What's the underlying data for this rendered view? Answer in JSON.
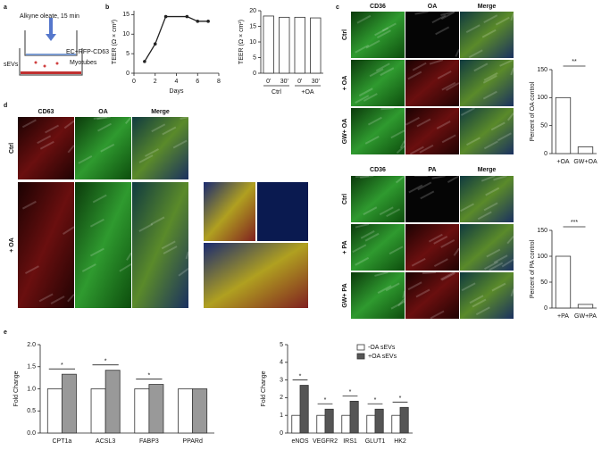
{
  "panel_labels": [
    "a",
    "b",
    "c",
    "d",
    "e"
  ],
  "schematic": {
    "top": "Alkyne oleate, 15 min",
    "ec": "EC+RFP-CD63",
    "myo": "Myotubes",
    "sevs": "sEVs"
  },
  "image_panels": [
    {
      "columns": [
        "CD36",
        "OA",
        "Merge"
      ],
      "rows": [
        "Ctrl",
        "+ OA",
        "GW+ OA"
      ]
    },
    {
      "columns": [
        "CD36",
        "PA",
        "Merge"
      ],
      "rows": [
        "Ctrl",
        "+ PA",
        "GW+ PA"
      ]
    },
    {
      "columns": [
        "CD63",
        "OA",
        "Merge"
      ],
      "rows": [
        "Ctrl",
        "+ OA"
      ]
    }
  ],
  "chart_data": [
    {
      "type": "line",
      "x_label": "Days",
      "y_label": "TEER (Ω × cm²)",
      "x": [
        1,
        2,
        3,
        5,
        6,
        7
      ],
      "values": [
        3,
        7.5,
        14.5,
        14.5,
        13.3,
        13.3
      ],
      "color": "#222222",
      "xlim": [
        0,
        8
      ],
      "xticks": [
        0,
        2,
        4,
        6,
        8
      ],
      "ylim": [
        0,
        16
      ],
      "yticks": [
        0,
        5,
        10,
        15
      ]
    },
    {
      "type": "bar",
      "y_label": "TEER (Ω × cm²)",
      "categories": [
        "0'",
        "30'",
        "0'",
        "30'"
      ],
      "groups": [
        "Ctrl",
        "+OA"
      ],
      "values": [
        18.3,
        17.9,
        17.9,
        17.7
      ],
      "color": "#ffffff",
      "ylim": [
        0,
        20
      ],
      "yticks": [
        0,
        5,
        10,
        15,
        20
      ]
    },
    {
      "type": "bar",
      "y_label": "Percent of OA control",
      "categories": [
        "+OA",
        "GW+OA"
      ],
      "values": [
        100,
        12
      ],
      "color": "#ffffff",
      "ylim": [
        0,
        150
      ],
      "yticks": [
        0,
        50,
        100,
        150
      ],
      "significance": "**"
    },
    {
      "type": "bar",
      "y_label": "Percent of PA control",
      "categories": [
        "+PA",
        "GW+PA"
      ],
      "values": [
        100,
        7
      ],
      "color": "#ffffff",
      "ylim": [
        0,
        150
      ],
      "yticks": [
        0,
        50,
        100,
        150
      ],
      "significance": "***"
    },
    {
      "type": "bar",
      "y_label": "Fold Change",
      "categories": [
        "CPT1a",
        "ACSL3",
        "FABP3",
        "PPARd"
      ],
      "series": [
        {
          "color": "#ffffff",
          "values": [
            1.0,
            1.0,
            1.0,
            1.0
          ]
        },
        {
          "color": "#999999",
          "values": [
            1.33,
            1.42,
            1.1,
            1.0
          ]
        }
      ],
      "ylim": [
        0,
        2
      ],
      "yticks": [
        {
          "value": 0,
          "label": "0.0"
        },
        0.5,
        {
          "value": 1,
          "label": "1.0"
        },
        1.5,
        {
          "value": 2,
          "label": "2.0"
        }
      ],
      "significance": [
        "*",
        "*",
        "*",
        null
      ]
    },
    {
      "type": "bar",
      "y_label": "Fold Change",
      "categories": [
        "eNOS",
        "VEGFR2",
        "IRS1",
        "GLUT1",
        "HK2"
      ],
      "series": [
        {
          "name": "-OA sEVs",
          "color": "#ffffff",
          "values": [
            1.0,
            1.0,
            1.0,
            1.0,
            1.0
          ]
        },
        {
          "name": "+OA sEVs",
          "color": "#555555",
          "values": [
            2.7,
            1.35,
            1.8,
            1.35,
            1.45
          ]
        }
      ],
      "ylim": [
        0,
        5
      ],
      "yticks": [
        0,
        1,
        2,
        3,
        4,
        5
      ],
      "significance": [
        "*",
        "*",
        "*",
        "*",
        "*"
      ],
      "legend": "upper right"
    }
  ]
}
